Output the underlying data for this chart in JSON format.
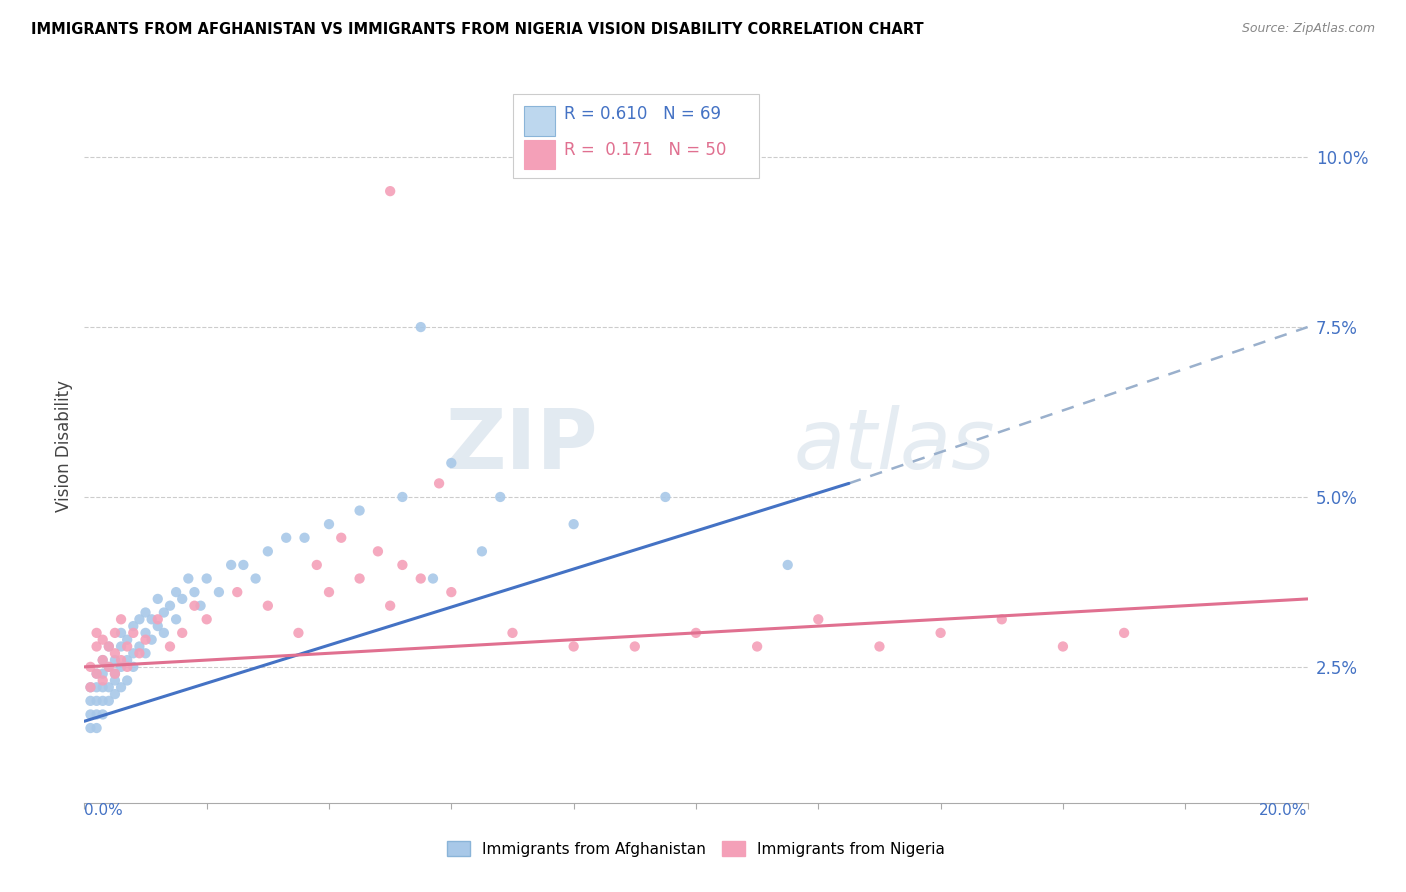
{
  "title": "IMMIGRANTS FROM AFGHANISTAN VS IMMIGRANTS FROM NIGERIA VISION DISABILITY CORRELATION CHART",
  "source": "Source: ZipAtlas.com",
  "ylabel": "Vision Disability",
  "y_tick_labels": [
    "2.5%",
    "5.0%",
    "7.5%",
    "10.0%"
  ],
  "y_tick_values": [
    0.025,
    0.05,
    0.075,
    0.1
  ],
  "x_range": [
    0.0,
    0.2
  ],
  "y_range": [
    0.005,
    0.11
  ],
  "afghanistan_color": "#A8C8E8",
  "nigeria_color": "#F4A0B8",
  "trend_afghanistan_color": "#4472C4",
  "trend_nigeria_color": "#E07090",
  "dashed_color": "#9AB0CC",
  "legend_R_afghanistan": "0.610",
  "legend_N_afghanistan": "69",
  "legend_R_nigeria": "0.171",
  "legend_N_nigeria": "50",
  "watermark": "ZIPatlas",
  "afghanistan_x": [
    0.001,
    0.001,
    0.001,
    0.001,
    0.002,
    0.002,
    0.002,
    0.002,
    0.002,
    0.003,
    0.003,
    0.003,
    0.003,
    0.003,
    0.004,
    0.004,
    0.004,
    0.004,
    0.005,
    0.005,
    0.005,
    0.005,
    0.006,
    0.006,
    0.006,
    0.006,
    0.007,
    0.007,
    0.007,
    0.008,
    0.008,
    0.008,
    0.009,
    0.009,
    0.01,
    0.01,
    0.01,
    0.011,
    0.011,
    0.012,
    0.012,
    0.013,
    0.013,
    0.014,
    0.015,
    0.015,
    0.016,
    0.017,
    0.018,
    0.019,
    0.02,
    0.022,
    0.024,
    0.026,
    0.028,
    0.03,
    0.033,
    0.036,
    0.04,
    0.045,
    0.052,
    0.06,
    0.068,
    0.055,
    0.057,
    0.065,
    0.08,
    0.095,
    0.115
  ],
  "afghanistan_y": [
    0.02,
    0.018,
    0.022,
    0.016,
    0.022,
    0.02,
    0.024,
    0.018,
    0.016,
    0.02,
    0.022,
    0.024,
    0.018,
    0.026,
    0.022,
    0.025,
    0.02,
    0.028,
    0.023,
    0.026,
    0.021,
    0.024,
    0.025,
    0.022,
    0.028,
    0.03,
    0.026,
    0.023,
    0.029,
    0.027,
    0.025,
    0.031,
    0.028,
    0.032,
    0.03,
    0.027,
    0.033,
    0.032,
    0.029,
    0.031,
    0.035,
    0.033,
    0.03,
    0.034,
    0.036,
    0.032,
    0.035,
    0.038,
    0.036,
    0.034,
    0.038,
    0.036,
    0.04,
    0.04,
    0.038,
    0.042,
    0.044,
    0.044,
    0.046,
    0.048,
    0.05,
    0.055,
    0.05,
    0.075,
    0.038,
    0.042,
    0.046,
    0.05,
    0.04
  ],
  "nigeria_x": [
    0.001,
    0.001,
    0.002,
    0.002,
    0.002,
    0.003,
    0.003,
    0.003,
    0.004,
    0.004,
    0.005,
    0.005,
    0.005,
    0.006,
    0.006,
    0.007,
    0.007,
    0.008,
    0.009,
    0.01,
    0.012,
    0.014,
    0.016,
    0.018,
    0.02,
    0.025,
    0.03,
    0.035,
    0.04,
    0.05,
    0.055,
    0.06,
    0.07,
    0.08,
    0.09,
    0.048,
    0.052,
    0.045,
    0.042,
    0.038,
    0.1,
    0.11,
    0.12,
    0.13,
    0.14,
    0.15,
    0.16,
    0.17,
    0.05,
    0.058
  ],
  "nigeria_y": [
    0.025,
    0.022,
    0.028,
    0.024,
    0.03,
    0.026,
    0.023,
    0.029,
    0.025,
    0.028,
    0.024,
    0.027,
    0.03,
    0.026,
    0.032,
    0.028,
    0.025,
    0.03,
    0.027,
    0.029,
    0.032,
    0.028,
    0.03,
    0.034,
    0.032,
    0.036,
    0.034,
    0.03,
    0.036,
    0.034,
    0.038,
    0.036,
    0.03,
    0.028,
    0.028,
    0.042,
    0.04,
    0.038,
    0.044,
    0.04,
    0.03,
    0.028,
    0.032,
    0.028,
    0.03,
    0.032,
    0.028,
    0.03,
    0.095,
    0.052
  ],
  "afg_trend_x_start": 0.0,
  "afg_trend_x_solid_end": 0.125,
  "afg_trend_x_dash_end": 0.2,
  "afg_trend_y_start": 0.017,
  "afg_trend_y_solid_end": 0.052,
  "afg_trend_y_dash_end": 0.075,
  "nga_trend_x_start": 0.0,
  "nga_trend_x_end": 0.2,
  "nga_trend_y_start": 0.025,
  "nga_trend_y_end": 0.035
}
